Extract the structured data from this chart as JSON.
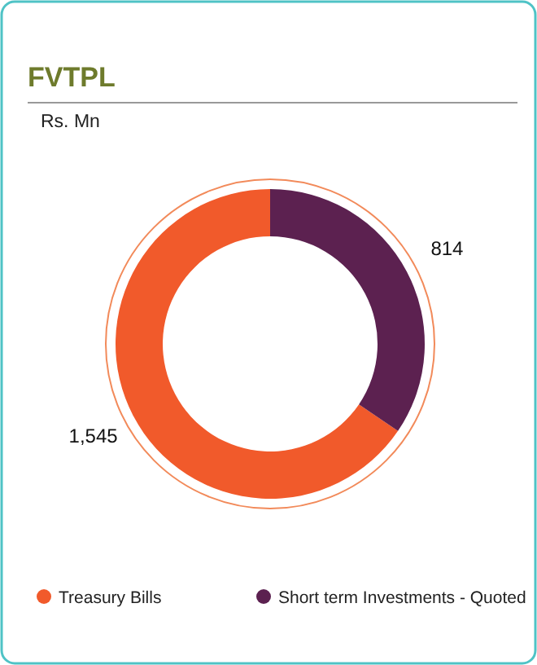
{
  "chart_data": {
    "type": "donut",
    "title": "FVTPL",
    "subtitle": "Rs. Mn",
    "categories": [
      "Treasury Bills",
      "Short term Investments - Quoted"
    ],
    "values": [
      1545,
      814
    ],
    "value_labels": [
      "1,545",
      "814"
    ],
    "colors": [
      "#f15a2b",
      "#5c2150"
    ],
    "legend": "bottom"
  }
}
